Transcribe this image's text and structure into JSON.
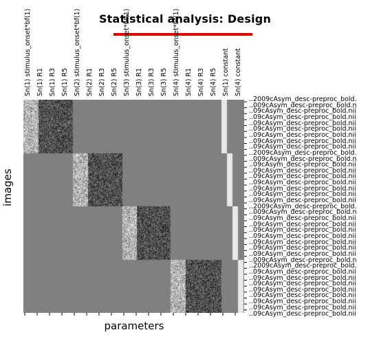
{
  "figure": {
    "title": "Statistical analysis: Design",
    "xlabel": "parameters",
    "ylabel": "images"
  },
  "columns": [
    "Sn(1) stimulus_onset*bf(1)",
    "Sn(1) R1",
    "Sn(1) R3",
    "Sn(1) R5",
    "Sn(2) stimulus_onset*bf(1)",
    "Sn(2) R1",
    "Sn(2) R3",
    "Sn(2) R5",
    "Sn(3) stimulus_onset*bf(1)",
    "Sn(3) R1",
    "Sn(3) R3",
    "Sn(3) R5",
    "Sn(4) stimulus_onset*bf(1)",
    "Sn(4) R1",
    "Sn(4) R3",
    "Sn(4) R5",
    "Sn(1) constant",
    "Sn(4) constant"
  ],
  "row_labels": [
    "..2009cAsym_desc-preproc_bold.",
    "..009cAsym_desc-preproc_bold.n",
    "..09cAsym_desc-preproc_bold.nii",
    "..09cAsym_desc-preproc_bold.nii",
    "..09cAsym_desc-preproc_bold.nii",
    "..09cAsym_desc-preproc_bold.nii",
    "..09cAsym_desc-preproc_bold.nii",
    "..09cAsym_desc-preproc_bold.nii",
    "..09cAsym_desc-preproc_bold.nii",
    "..2009cAsym_desc-preproc_bold.",
    "..009cAsym_desc-preproc_bold.n",
    "..09cAsym_desc-preproc_bold.nii",
    "..09cAsym_desc-preproc_bold.nii",
    "..09cAsym_desc-preproc_bold.nii",
    "..09cAsym_desc-preproc_bold.nii",
    "..09cAsym_desc-preproc_bold.nii",
    "..09cAsym_desc-preproc_bold.nii",
    "..09cAsym_desc-preproc_bold.nii",
    "..2009cAsym_desc-preproc_bold.",
    "..009cAsym_desc-preproc_bold.n",
    "..09cAsym_desc-preproc_bold.nii",
    "..09cAsym_desc-preproc_bold.nii",
    "..09cAsym_desc-preproc_bold.nii",
    "..09cAsym_desc-preproc_bold.nii",
    "..09cAsym_desc-preproc_bold.nii",
    "..09cAsym_desc-preproc_bold.nii",
    "..09cAsym_desc-preproc_bold.nii",
    "..009cAsym_desc-preproc_bold.n",
    "..2009cAsym_desc-preproc_bold.",
    "..09cAsym_desc-preproc_bold.nii",
    "..09cAsym_desc-preproc_bold.nii",
    "..09cAsym_desc-preproc_bold.nii",
    "..09cAsym_desc-preproc_bold.nii",
    "..09cAsym_desc-preproc_bold.nii",
    "..09cAsym_desc-preproc_bold.nii",
    "..09cAsym_desc-preproc_bold.nii"
  ],
  "sessions": 4,
  "colors": {
    "background": "#808080",
    "accent": "#e00000"
  }
}
